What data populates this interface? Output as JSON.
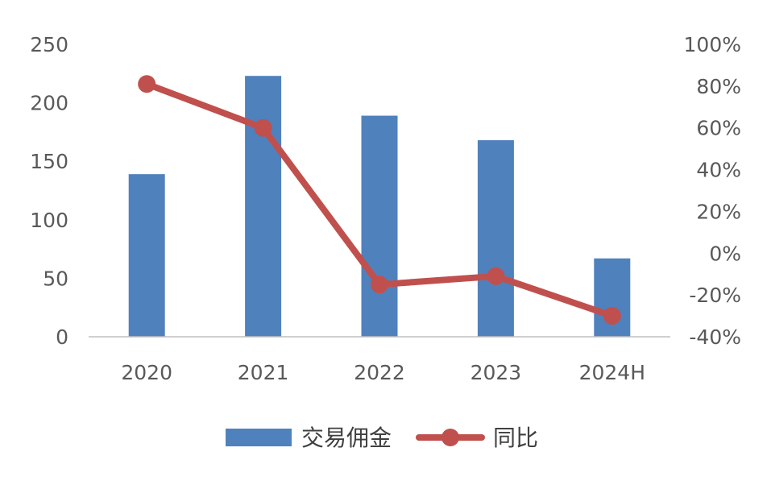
{
  "colors": {
    "bar": "#4F81BD",
    "line": "#C0504D",
    "axis": "#BFBFBF",
    "text": "#595959"
  },
  "chart_data": {
    "type": "bar",
    "categories": [
      "2020",
      "2021",
      "2022",
      "2023",
      "2024H"
    ],
    "y_left": {
      "ticks": [
        "0",
        "50",
        "100",
        "150",
        "200",
        "250"
      ],
      "ylim": [
        0,
        250
      ]
    },
    "y_right": {
      "ticks": [
        "-40%",
        "-20%",
        "0%",
        "20%",
        "40%",
        "60%",
        "80%",
        "100%"
      ],
      "ylim": [
        -40,
        100
      ]
    },
    "series": [
      {
        "name": "交易佣金",
        "type": "bar",
        "axis": "left",
        "values": [
          139,
          223,
          189,
          168,
          67
        ]
      },
      {
        "name": "同比",
        "type": "line",
        "axis": "right",
        "values": [
          81,
          60,
          -15,
          -11,
          -30
        ]
      }
    ],
    "legend_position": "bottom",
    "grid": false
  }
}
